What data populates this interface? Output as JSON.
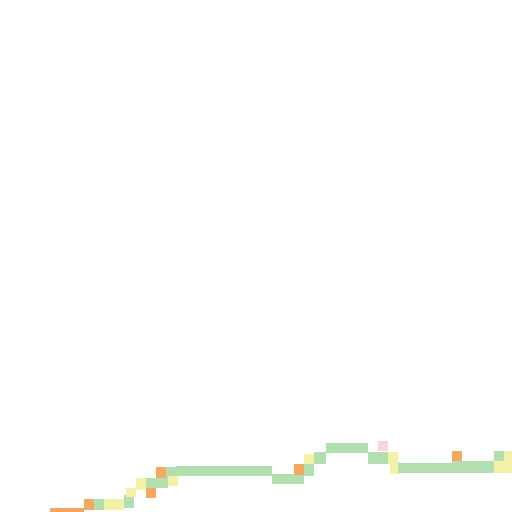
{
  "map": {
    "background_color": "#ffffff",
    "legend_palette": {
      "low": "#b3dfb0",
      "medium": "#f3f0a8",
      "high": "#f4a861",
      "very_high": "#f7d6d4"
    },
    "labels": []
  }
}
